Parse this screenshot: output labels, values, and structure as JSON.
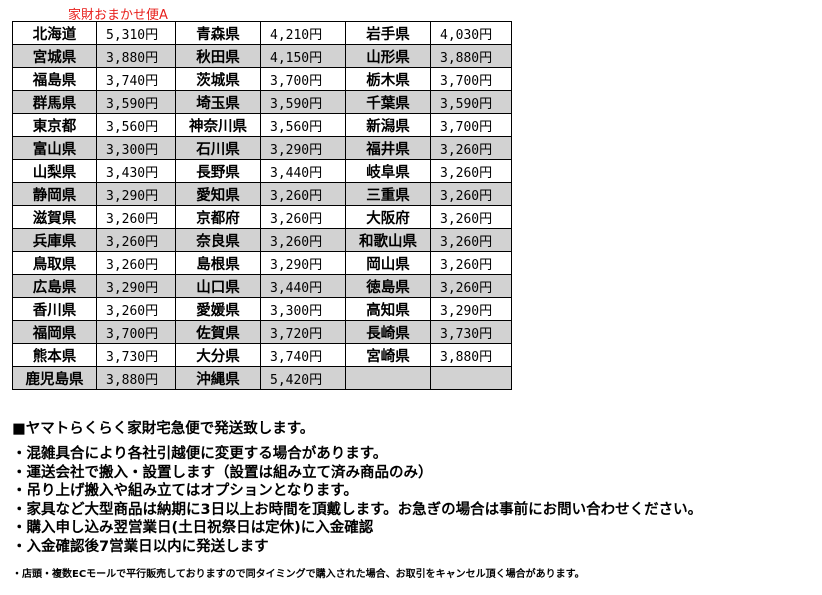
{
  "caption": "家財おまかせ便A",
  "rows": [
    [
      "北海道",
      "5,310円",
      "青森県",
      "4,210円",
      "岩手県",
      "4,030円"
    ],
    [
      "宮城県",
      "3,880円",
      "秋田県",
      "4,150円",
      "山形県",
      "3,880円"
    ],
    [
      "福島県",
      "3,740円",
      "茨城県",
      "3,700円",
      "栃木県",
      "3,700円"
    ],
    [
      "群馬県",
      "3,590円",
      "埼玉県",
      "3,590円",
      "千葉県",
      "3,590円"
    ],
    [
      "東京都",
      "3,560円",
      "神奈川県",
      "3,560円",
      "新潟県",
      "3,700円"
    ],
    [
      "富山県",
      "3,300円",
      "石川県",
      "3,290円",
      "福井県",
      "3,260円"
    ],
    [
      "山梨県",
      "3,430円",
      "長野県",
      "3,440円",
      "岐阜県",
      "3,260円"
    ],
    [
      "静岡県",
      "3,290円",
      "愛知県",
      "3,260円",
      "三重県",
      "3,260円"
    ],
    [
      "滋賀県",
      "3,260円",
      "京都府",
      "3,260円",
      "大阪府",
      "3,260円"
    ],
    [
      "兵庫県",
      "3,260円",
      "奈良県",
      "3,260円",
      "和歌山県",
      "3,260円"
    ],
    [
      "鳥取県",
      "3,260円",
      "島根県",
      "3,290円",
      "岡山県",
      "3,260円"
    ],
    [
      "広島県",
      "3,290円",
      "山口県",
      "3,440円",
      "徳島県",
      "3,260円"
    ],
    [
      "香川県",
      "3,260円",
      "愛媛県",
      "3,300円",
      "高知県",
      "3,290円"
    ],
    [
      "福岡県",
      "3,700円",
      "佐賀県",
      "3,720円",
      "長崎県",
      "3,730円"
    ],
    [
      "熊本県",
      "3,730円",
      "大分県",
      "3,740円",
      "宮崎県",
      "3,880円"
    ],
    [
      "鹿児島県",
      "3,880円",
      "沖縄県",
      "5,420円",
      "",
      ""
    ]
  ],
  "notes": {
    "heading": "■ヤマトらくらく家財宅急便で発送致します。",
    "lines": [
      "・混雑具合により各社引越便に変更する場合があります。",
      "・運送会社で搬入・設置します（設置は組み立て済み商品のみ）",
      "・吊り上げ搬入や組み立てはオプションとなります。",
      "・家具など大型商品は納期に3日以上お時間を頂戴します。お急ぎの場合は事前にお問い合わせください。",
      "・購入申し込み翌営業日(土日祝祭日は定休)に入金確認",
      "・入金確認後7営業日以内に発送します"
    ],
    "small": "・店頭・複数ECモールで平行販売しておりますので同タイミングで購入された場合、お取引をキャンセル頂く場合があります。"
  },
  "colors": {
    "caption": "#e8201c",
    "alt_row": "#d2d2d2"
  }
}
